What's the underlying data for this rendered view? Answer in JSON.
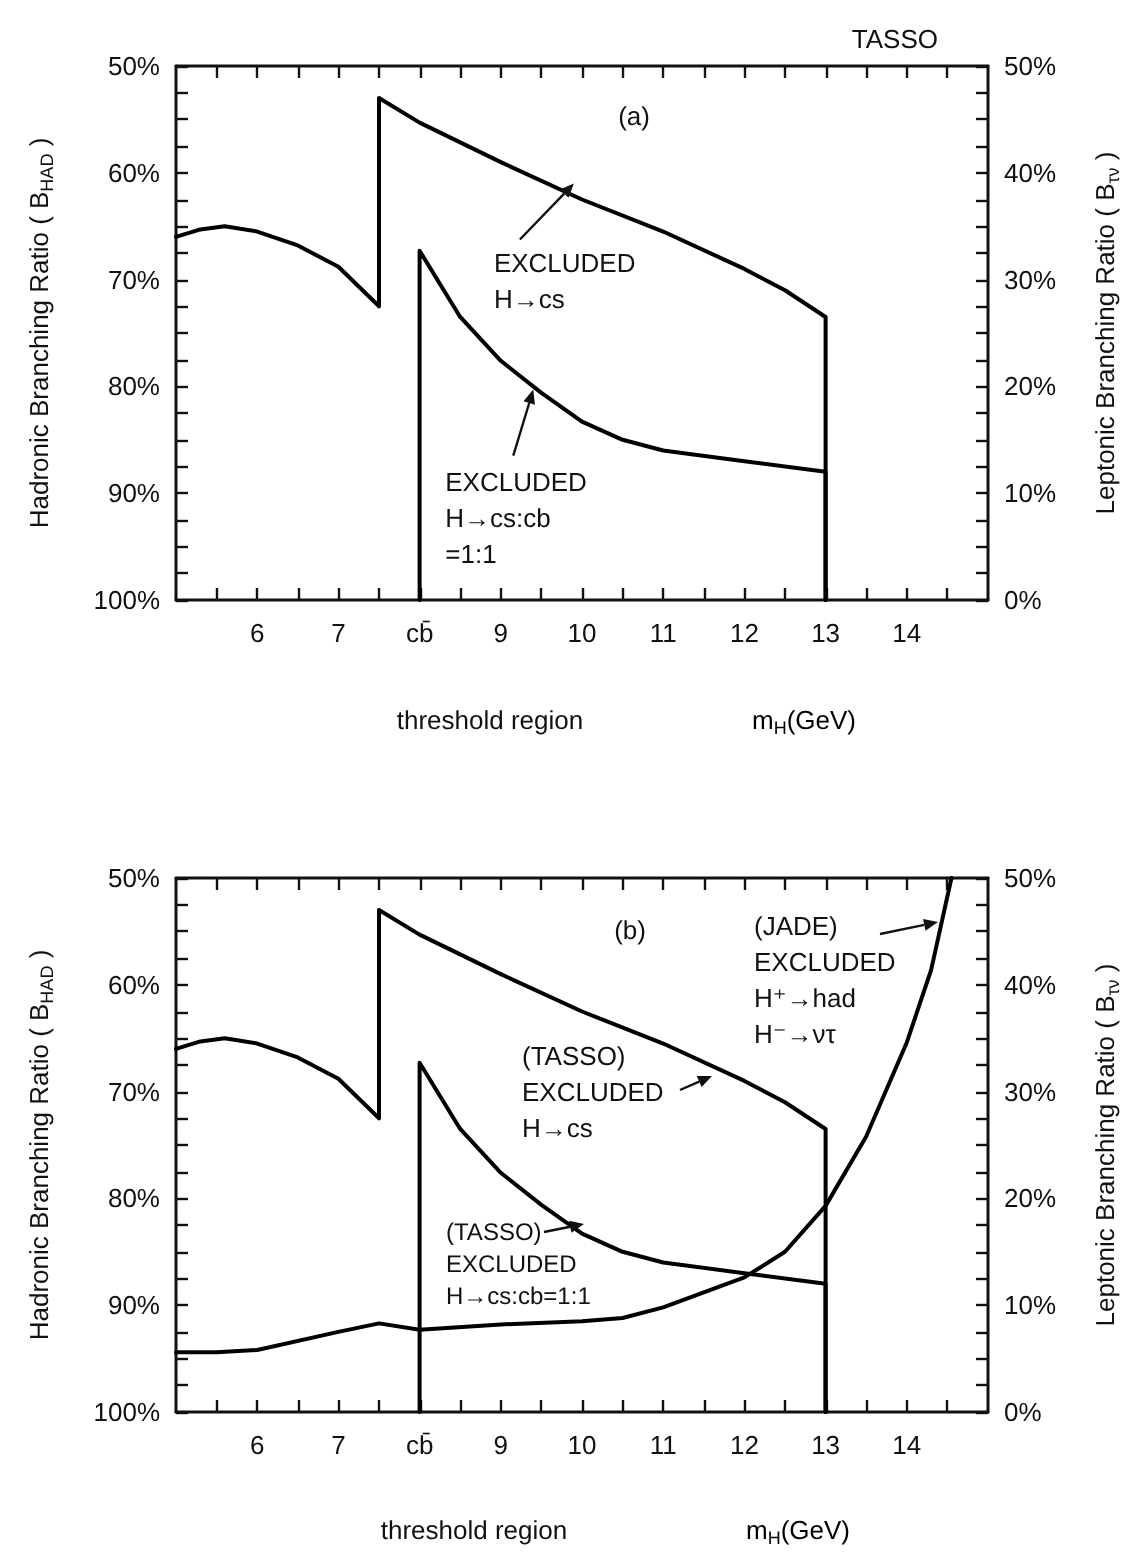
{
  "chart_data": [
    {
      "type": "line",
      "title": "TASSO",
      "xlabel": "m$_{H}$(GeV)",
      "ylabel": "Hadronic Branching Ratio ( B$_{HAD}$ )",
      "y2label": "Leptonic Branching Ratio ( B$_{τν}$ )",
      "marker": "none",
      "line_style": "solid",
      "xlim": [
        5,
        15
      ],
      "xticks": [
        {
          "value": 5.5,
          "label": null
        },
        6,
        {
          "value": 6.5,
          "label": null
        },
        7,
        {
          "value": 7.5,
          "label": null
        },
        {
          "value": 8,
          "label": "cb̄"
        },
        {
          "value": 8.5,
          "label": null
        },
        9,
        {
          "value": 9.5,
          "label": null
        },
        10,
        {
          "value": 10.5,
          "label": null
        },
        11,
        {
          "value": 11.5,
          "label": null
        },
        12,
        {
          "value": 12.5,
          "label": null
        },
        13,
        {
          "value": 13.5,
          "label": null
        },
        14,
        {
          "value": 14.5,
          "label": null
        }
      ],
      "ylim": [
        100,
        50
      ],
      "yticks": [
        {
          "value": 50,
          "label": "50%"
        },
        {
          "value": 52.5,
          "label": null
        },
        {
          "value": 55,
          "label": null
        },
        {
          "value": 57.5,
          "label": null
        },
        {
          "value": 60,
          "label": "60%"
        },
        {
          "value": 62.5,
          "label": null
        },
        {
          "value": 65,
          "label": null
        },
        {
          "value": 67.5,
          "label": null
        },
        {
          "value": 70,
          "label": "70%"
        },
        {
          "value": 72.5,
          "label": null
        },
        {
          "value": 75,
          "label": null
        },
        {
          "value": 77.5,
          "label": null
        },
        {
          "value": 80,
          "label": "80%"
        },
        {
          "value": 82.5,
          "label": null
        },
        {
          "value": 85,
          "label": null
        },
        {
          "value": 87.5,
          "label": null
        },
        {
          "value": 90,
          "label": "90%"
        },
        {
          "value": 92.5,
          "label": null
        },
        {
          "value": 95,
          "label": null
        },
        {
          "value": 97.5,
          "label": null
        },
        {
          "value": 100,
          "label": "100%"
        }
      ],
      "y2lim": [
        0,
        50
      ],
      "y2ticks": [
        {
          "value": 0,
          "label": "0%"
        },
        {
          "value": 2.5,
          "label": null
        },
        {
          "value": 5,
          "label": null
        },
        {
          "value": 7.5,
          "label": null
        },
        {
          "value": 10,
          "label": "10%"
        },
        {
          "value": 12.5,
          "label": null
        },
        {
          "value": 15,
          "label": null
        },
        {
          "value": 17.5,
          "label": null
        },
        {
          "value": 20,
          "label": "20%"
        },
        {
          "value": 22.5,
          "label": null
        },
        {
          "value": 25,
          "label": null
        },
        {
          "value": 27.5,
          "label": null
        },
        {
          "value": 30,
          "label": "30%"
        },
        {
          "value": 32.5,
          "label": null
        },
        {
          "value": 35,
          "label": null
        },
        {
          "value": 37.5,
          "label": null
        },
        {
          "value": 40,
          "label": "40%"
        },
        {
          "value": 42.5,
          "label": null
        },
        {
          "value": 45,
          "label": null
        },
        {
          "value": 47.5,
          "label": null
        },
        {
          "value": 50,
          "label": "50%"
        }
      ],
      "series": [
        {
          "color": "#000000",
          "x": [
            5,
            5.3,
            5.6,
            6,
            6.5,
            7,
            7.5,
            7.5,
            8,
            9,
            10,
            11,
            12,
            12.5,
            13,
            13
          ],
          "values": [
            66,
            65.3,
            65,
            65.5,
            66.8,
            68.8,
            72.5,
            53,
            55.3,
            59,
            62.5,
            65.5,
            69,
            71,
            73.5,
            100
          ]
        },
        {
          "color": "#000000",
          "x": [
            8,
            8,
            8.5,
            9,
            9.5,
            10,
            10.5,
            11,
            12,
            13,
            13
          ],
          "values": [
            100,
            67.3,
            73.5,
            77.6,
            80.6,
            83.3,
            85,
            86,
            87,
            88,
            100
          ]
        }
      ],
      "annotations": [
        "(a)",
        {
          "text": "EXCLUDED\nH→cs",
          "x": 9.9,
          "y": 61
        },
        {
          "text": "EXCLUDED\nH→cs:cb\n=1:1",
          "x": 9.4,
          "y": 80.3
        },
        "threshold region"
      ]
    },
    {
      "type": "line",
      "xlabel": "m$_{H}$(GeV)",
      "ylabel": "Hadronic Branching Ratio ( B$_{HAD}$ )",
      "y2label": "Leptonic Branching Ratio ( B$_{τν}$ )",
      "marker": "none",
      "line_style": "solid",
      "xlim": [
        5,
        15
      ],
      "xticks": [
        {
          "value": 5.5,
          "label": null
        },
        6,
        {
          "value": 6.5,
          "label": null
        },
        7,
        {
          "value": 7.5,
          "label": null
        },
        {
          "value": 8,
          "label": "cb̄"
        },
        {
          "value": 8.5,
          "label": null
        },
        9,
        {
          "value": 9.5,
          "label": null
        },
        10,
        {
          "value": 10.5,
          "label": null
        },
        11,
        {
          "value": 11.5,
          "label": null
        },
        12,
        {
          "value": 12.5,
          "label": null
        },
        13,
        {
          "value": 13.5,
          "label": null
        },
        14,
        {
          "value": 14.5,
          "label": null
        }
      ],
      "ylim": [
        100,
        50
      ],
      "yticks": [
        {
          "value": 50,
          "label": "50%"
        },
        {
          "value": 52.5,
          "label": null
        },
        {
          "value": 55,
          "label": null
        },
        {
          "value": 57.5,
          "label": null
        },
        {
          "value": 60,
          "label": "60%"
        },
        {
          "value": 62.5,
          "label": null
        },
        {
          "value": 65,
          "label": null
        },
        {
          "value": 67.5,
          "label": null
        },
        {
          "value": 70,
          "label": "70%"
        },
        {
          "value": 72.5,
          "label": null
        },
        {
          "value": 75,
          "label": null
        },
        {
          "value": 77.5,
          "label": null
        },
        {
          "value": 80,
          "label": "80%"
        },
        {
          "value": 82.5,
          "label": null
        },
        {
          "value": 85,
          "label": null
        },
        {
          "value": 87.5,
          "label": null
        },
        {
          "value": 90,
          "label": "90%"
        },
        {
          "value": 92.5,
          "label": null
        },
        {
          "value": 95,
          "label": null
        },
        {
          "value": 97.5,
          "label": null
        },
        {
          "value": 100,
          "label": "100%"
        }
      ],
      "y2lim": [
        0,
        50
      ],
      "y2ticks": [
        {
          "value": 0,
          "label": "0%"
        },
        {
          "value": 2.5,
          "label": null
        },
        {
          "value": 5,
          "label": null
        },
        {
          "value": 7.5,
          "label": null
        },
        {
          "value": 10,
          "label": "10%"
        },
        {
          "value": 12.5,
          "label": null
        },
        {
          "value": 15,
          "label": null
        },
        {
          "value": 17.5,
          "label": null
        },
        {
          "value": 20,
          "label": "20%"
        },
        {
          "value": 22.5,
          "label": null
        },
        {
          "value": 25,
          "label": null
        },
        {
          "value": 27.5,
          "label": null
        },
        {
          "value": 30,
          "label": "30%"
        },
        {
          "value": 32.5,
          "label": null
        },
        {
          "value": 35,
          "label": null
        },
        {
          "value": 37.5,
          "label": null
        },
        {
          "value": 40,
          "label": "40%"
        },
        {
          "value": 42.5,
          "label": null
        },
        {
          "value": 45,
          "label": null
        },
        {
          "value": 47.5,
          "label": null
        },
        {
          "value": 50,
          "label": "50%"
        }
      ],
      "series": [
        {
          "color": "#000000",
          "x": [
            5,
            5.3,
            5.6,
            6,
            6.5,
            7,
            7.5,
            7.5,
            8,
            9,
            10,
            11,
            12,
            12.5,
            13,
            13
          ],
          "values": [
            66,
            65.3,
            65,
            65.5,
            66.8,
            68.8,
            72.5,
            53,
            55.3,
            59,
            62.5,
            65.5,
            69,
            71,
            73.5,
            100
          ]
        },
        {
          "color": "#000000",
          "x": [
            8,
            8,
            8.5,
            9,
            9.5,
            10,
            10.5,
            11,
            12,
            13,
            13
          ],
          "values": [
            100,
            67.3,
            73.5,
            77.6,
            80.6,
            83.3,
            85,
            86,
            87,
            88,
            100
          ]
        },
        {
          "color": "#000000",
          "x": [
            5,
            5.5,
            6,
            7,
            7.5,
            8,
            9,
            10,
            10.5,
            11,
            12,
            12.5,
            13,
            13.5,
            14,
            14.3,
            14.55
          ],
          "values": [
            94.4,
            94.4,
            94.2,
            92.5,
            91.7,
            92.3,
            91.8,
            91.5,
            91.2,
            90.2,
            87.4,
            85,
            80.7,
            74.2,
            65.4,
            58.6,
            50
          ]
        }
      ],
      "annotations": [
        "(b)",
        "(JADE)\nEXCLUDED\nH⁺→had\nH⁻→ντ",
        "(TASSO)\nEXCLUDED\nH→cs",
        "(TASSO)\nEXCLUDED\nH→cs:cb=1:1",
        "threshold region"
      ]
    }
  ]
}
